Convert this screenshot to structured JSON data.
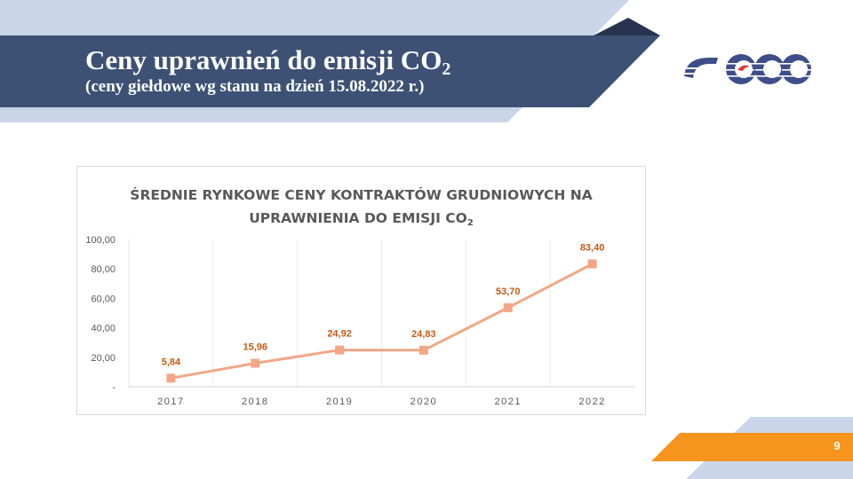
{
  "slide": {
    "title": "Ceny uprawnień do emisji CO",
    "title_subscript": "2",
    "subtitle": "(ceny giełdowe wg stanu na dzień 15.08.2022 r.)",
    "page_number": "9"
  },
  "colors": {
    "banner": "#3d5175",
    "light_band": "#c9d5e8",
    "dark_triangle": "#28344f",
    "orange": "#f7941d",
    "line": "#f2a686",
    "label": "#c55a11",
    "logo": "#3d4f8a"
  },
  "chart_data": {
    "type": "line",
    "title_line1": "ŚREDNIE RYNKOWE CENY KONTRAKTÓW GRUDNIOWYCH NA",
    "title_line2": "UPRAWNIENIA DO EMISJI CO",
    "title_line2_subscript": "2",
    "categories": [
      "2017",
      "2018",
      "2019",
      "2020",
      "2021",
      "2022"
    ],
    "values": [
      5.84,
      15.96,
      24.92,
      24.83,
      53.7,
      83.4
    ],
    "data_labels": [
      "5,84",
      "15,96",
      "24,92",
      "24,83",
      "53,70",
      "83,40"
    ],
    "y_ticks": [
      0,
      20,
      40,
      60,
      80,
      100
    ],
    "y_tick_labels": [
      "-",
      "20,00",
      "40,00",
      "60,00",
      "80,00",
      "100,00"
    ],
    "ylim": [
      0,
      100
    ],
    "marker": "square",
    "grid": "vertical"
  }
}
